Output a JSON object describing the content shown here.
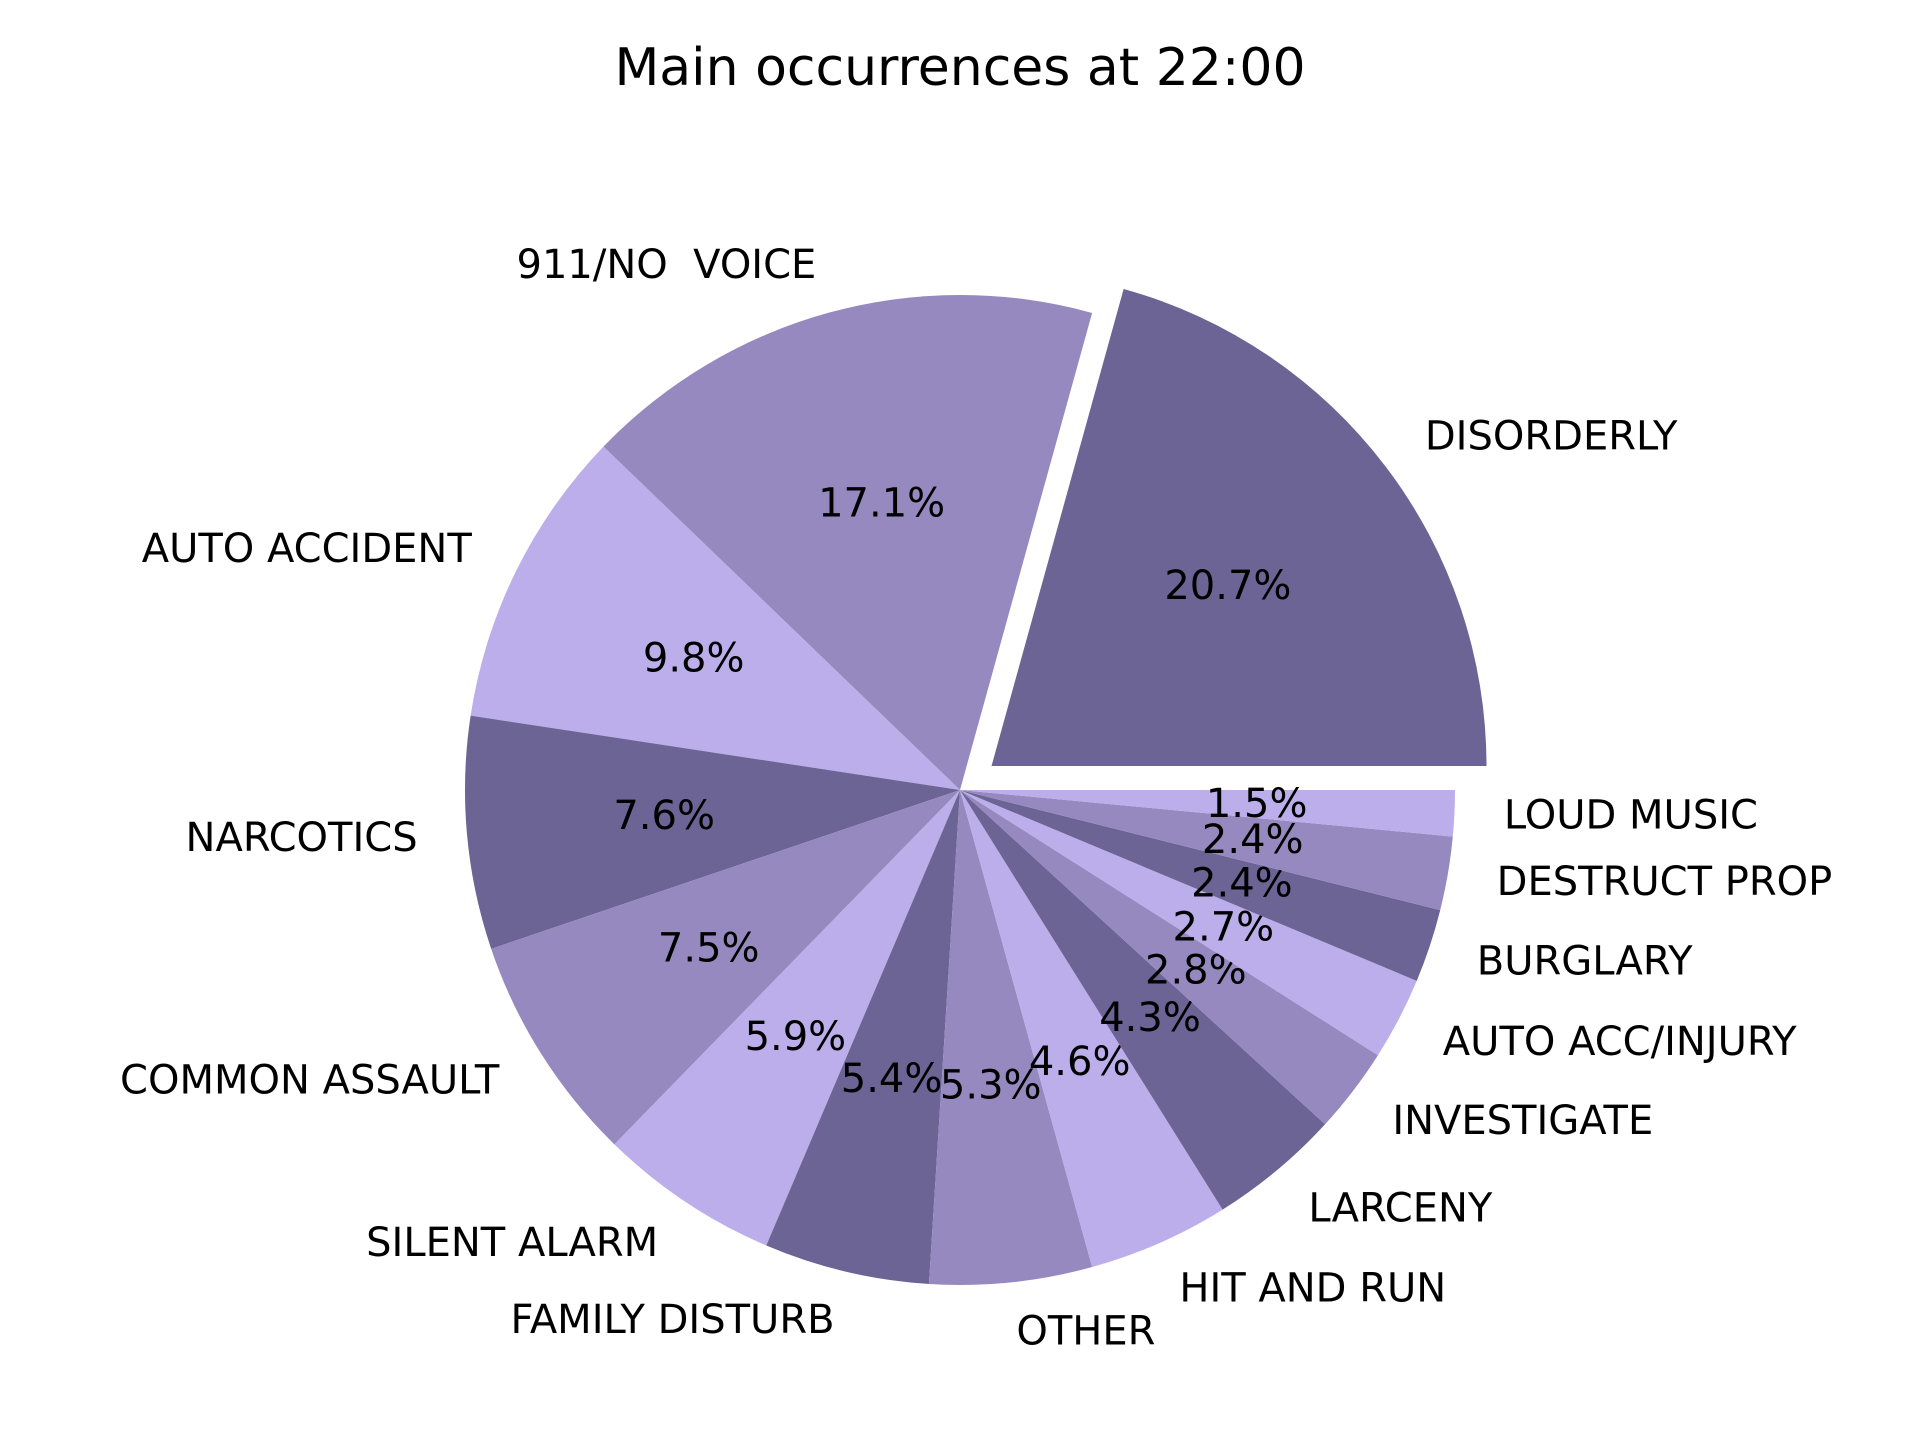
{
  "chart_data": {
    "type": "pie",
    "title": "Main occurrences at 22:00",
    "start_angle_deg": 0,
    "direction": "counterclockwise",
    "explode": [
      0.08,
      0,
      0,
      0,
      0,
      0,
      0,
      0,
      0,
      0,
      0,
      0,
      0,
      0,
      0
    ],
    "colors": [
      "#6b6495",
      "#9689bf",
      "#bbaeea"
    ],
    "slices": [
      {
        "label": "DISORDERLY",
        "percent": 20.7,
        "pct_label": "20.7%"
      },
      {
        "label": "911/NO  VOICE",
        "percent": 17.1,
        "pct_label": "17.1%"
      },
      {
        "label": "AUTO ACCIDENT",
        "percent": 9.8,
        "pct_label": "9.8%"
      },
      {
        "label": "NARCOTICS",
        "percent": 7.6,
        "pct_label": "7.6%"
      },
      {
        "label": "COMMON ASSAULT",
        "percent": 7.5,
        "pct_label": "7.5%"
      },
      {
        "label": "SILENT ALARM",
        "percent": 5.9,
        "pct_label": "5.9%"
      },
      {
        "label": "FAMILY DISTURB",
        "percent": 5.4,
        "pct_label": "5.4%"
      },
      {
        "label": "OTHER",
        "percent": 5.3,
        "pct_label": "5.3%"
      },
      {
        "label": "HIT AND RUN",
        "percent": 4.6,
        "pct_label": "4.6%"
      },
      {
        "label": "LARCENY",
        "percent": 4.3,
        "pct_label": "4.3%"
      },
      {
        "label": "INVESTIGATE",
        "percent": 2.8,
        "pct_label": "2.8%"
      },
      {
        "label": "AUTO ACC/INJURY",
        "percent": 2.7,
        "pct_label": "2.7%"
      },
      {
        "label": "BURGLARY",
        "percent": 2.4,
        "pct_label": "2.4%"
      },
      {
        "label": "DESTRUCT PROP",
        "percent": 2.4,
        "pct_label": "2.4%"
      },
      {
        "label": "LOUD MUSIC",
        "percent": 1.5,
        "pct_label": "1.5%"
      }
    ]
  }
}
